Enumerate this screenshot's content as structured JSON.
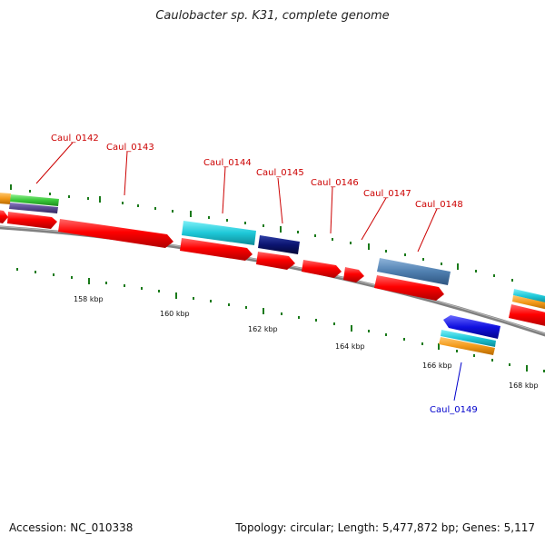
{
  "title": "Caulobacter sp. K31, complete genome",
  "accession": "Accession: NC_010338",
  "summary": "Topology: circular; Length: 5,477,872 bp; Genes: 5,117",
  "colors": {
    "cds": "#ff0000",
    "backbone": "#808080",
    "tick": "#1a7a1a",
    "label_forward": "#cc0000",
    "label_reverse": "#0000cc",
    "cyan": "#20c8d8",
    "navy": "#0b1470",
    "steelblue": "#4f7fb0",
    "blue": "#1010e0",
    "orange": "#f39a1a",
    "green": "#3ac83a",
    "purple": "#5a4a90"
  },
  "kbp_labels": [
    "158 kbp",
    "160 kbp",
    "162 kbp",
    "164 kbp",
    "166 kbp",
    "168 kbp"
  ],
  "gene_labels": [
    "Caul_0142",
    "Caul_0143",
    "Caul_0144",
    "Caul_0145",
    "Caul_0146",
    "Caul_0147",
    "Caul_0148",
    "Caul_0149"
  ]
}
